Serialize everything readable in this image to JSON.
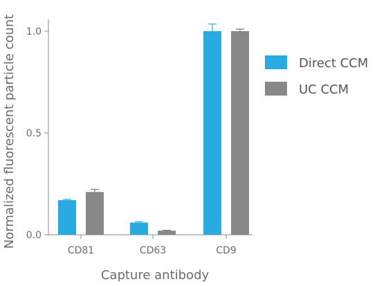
{
  "chart_data": {
    "type": "bar",
    "categories": [
      "CD81",
      "CD63",
      "CD9"
    ],
    "series": [
      {
        "name": "Direct CCM",
        "values": [
          0.17,
          0.06,
          1.0
        ],
        "errors": [
          0.004,
          0.004,
          0.035
        ],
        "color": "#29abe2",
        "error_color": "#29abe2"
      },
      {
        "name": "UC CCM",
        "values": [
          0.21,
          0.02,
          1.0
        ],
        "errors": [
          0.013,
          0.002,
          0.01
        ],
        "color": "#888888",
        "error_color": "#777777"
      }
    ],
    "xlabel": "Capture antibody",
    "ylabel": "Normalized fluorescent particle count",
    "ylim": [
      0,
      1.0
    ],
    "yticks": [
      0.0,
      0.5,
      1.0
    ],
    "ytick_labels": [
      "0.0",
      "0.5",
      "1.0"
    ],
    "grid": false,
    "legend_position": "right"
  }
}
